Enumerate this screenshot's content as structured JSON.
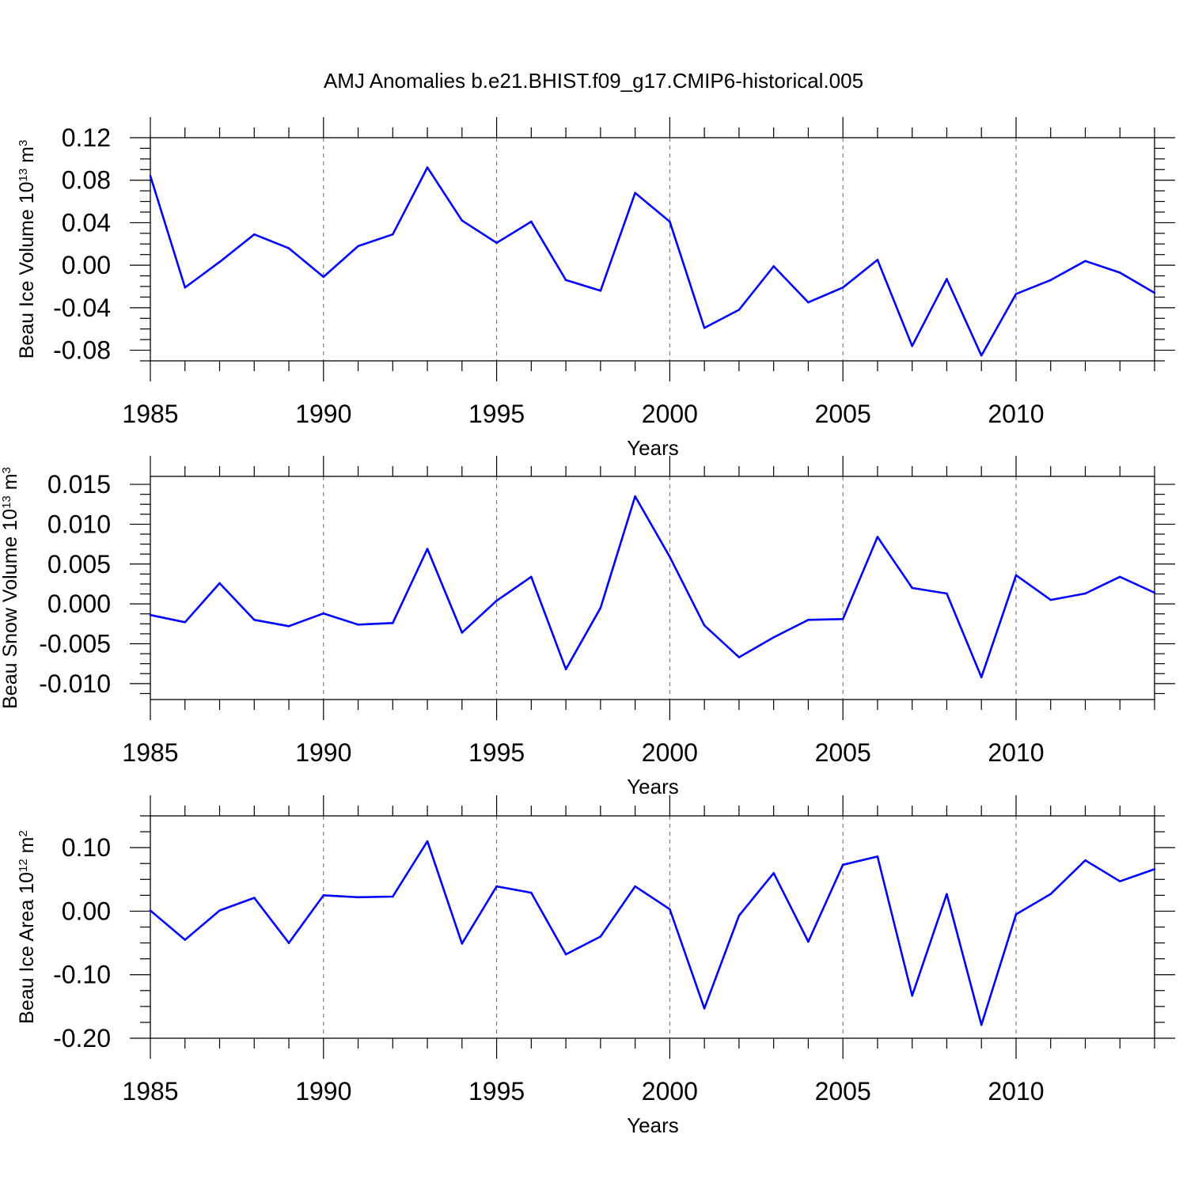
{
  "title": "AMJ Anomalies b.e21.BHIST.f09_g17.CMIP6-historical.005",
  "line_color": "#0000ff",
  "chart_data": [
    {
      "type": "line",
      "id": "ice-volume",
      "xlabel": "Years",
      "ylabel": {
        "prefix": "Beau Ice Volume 10",
        "exp1": "13",
        "mid": " m",
        "exp2": "3"
      },
      "xlim": [
        1985,
        2014
      ],
      "ylim": [
        -0.09,
        0.12
      ],
      "xticks": [
        "1985",
        "1990",
        "1995",
        "2000",
        "2005",
        "2010"
      ],
      "yticks": [
        "0.12",
        "0.08",
        "0.04",
        "0.00",
        "-0.04",
        "-0.08"
      ],
      "x": [
        1985,
        1986,
        1987,
        1988,
        1989,
        1990,
        1991,
        1992,
        1993,
        1994,
        1995,
        1996,
        1997,
        1998,
        1999,
        2000,
        2001,
        2002,
        2003,
        2004,
        2005,
        2006,
        2007,
        2008,
        2009,
        2010,
        2011,
        2012,
        2013,
        2014
      ],
      "values": [
        0.084,
        -0.021,
        0.003,
        0.029,
        0.016,
        -0.011,
        0.018,
        0.029,
        0.092,
        0.042,
        0.021,
        0.041,
        -0.014,
        -0.024,
        0.068,
        0.041,
        -0.059,
        -0.042,
        -0.001,
        -0.035,
        -0.021,
        0.005,
        -0.076,
        -0.013,
        -0.085,
        -0.027,
        -0.014,
        0.004,
        -0.007,
        -0.026
      ]
    },
    {
      "type": "line",
      "id": "snow-volume",
      "xlabel": "Years",
      "ylabel": {
        "prefix": "Beau Snow Volume 10",
        "exp1": "13",
        "mid": " m",
        "exp2": "3"
      },
      "xlim": [
        1985,
        2014
      ],
      "ylim": [
        -0.012,
        0.016
      ],
      "xticks": [
        "1985",
        "1990",
        "1995",
        "2000",
        "2005",
        "2010"
      ],
      "yticks": [
        "0.015",
        "0.010",
        "0.005",
        "0.000",
        "-0.005",
        "-0.010"
      ],
      "x": [
        1985,
        1986,
        1987,
        1988,
        1989,
        1990,
        1991,
        1992,
        1993,
        1994,
        1995,
        1996,
        1997,
        1998,
        1999,
        2000,
        2001,
        2002,
        2003,
        2004,
        2005,
        2006,
        2007,
        2008,
        2009,
        2010,
        2011,
        2012,
        2013,
        2014
      ],
      "values": [
        -0.0014,
        -0.0023,
        0.0026,
        -0.002,
        -0.0028,
        -0.0012,
        -0.0026,
        -0.0024,
        0.0069,
        -0.0036,
        0.0004,
        0.0034,
        -0.0082,
        -0.0005,
        0.0135,
        0.0059,
        -0.0027,
        -0.0067,
        -0.0042,
        -0.002,
        -0.0019,
        0.0084,
        0.002,
        0.0013,
        -0.0092,
        0.0036,
        0.0005,
        0.0013,
        0.0034,
        0.0014
      ]
    },
    {
      "type": "line",
      "id": "ice-area",
      "xlabel": "Years",
      "ylabel": {
        "prefix": "Beau Ice Area 10",
        "exp1": "12",
        "mid": " m",
        "exp2": "2"
      },
      "xlim": [
        1985,
        2014
      ],
      "ylim": [
        -0.2,
        0.15
      ],
      "xticks": [
        "1985",
        "1990",
        "1995",
        "2000",
        "2005",
        "2010"
      ],
      "yticks": [
        "0.10",
        "0.00",
        "-0.10",
        "-0.20"
      ],
      "x": [
        1985,
        1986,
        1987,
        1988,
        1989,
        1990,
        1991,
        1992,
        1993,
        1994,
        1995,
        1996,
        1997,
        1998,
        1999,
        2000,
        2001,
        2002,
        2003,
        2004,
        2005,
        2006,
        2007,
        2008,
        2009,
        2010,
        2011,
        2012,
        2013,
        2014
      ],
      "values": [
        0.001,
        -0.045,
        0.001,
        0.021,
        -0.05,
        0.025,
        0.022,
        0.023,
        0.11,
        -0.051,
        0.039,
        0.029,
        -0.068,
        -0.04,
        0.039,
        0.003,
        -0.153,
        -0.007,
        0.06,
        -0.048,
        0.073,
        0.086,
        -0.133,
        0.027,
        -0.179,
        -0.005,
        0.027,
        0.08,
        0.047,
        0.066
      ]
    }
  ]
}
